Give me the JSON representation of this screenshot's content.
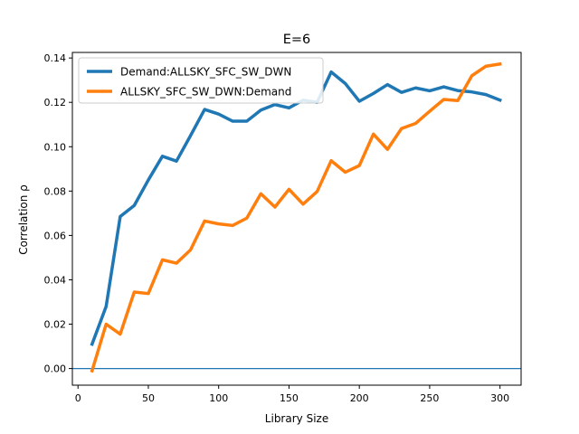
{
  "chart_data": {
    "type": "line",
    "title": "E=6",
    "xlabel": "Library Size",
    "ylabel": "Correlation ρ",
    "xlim": [
      -4,
      315
    ],
    "ylim": [
      -0.0075,
      0.1425
    ],
    "xticks": [
      0,
      50,
      100,
      150,
      200,
      250,
      300
    ],
    "yticks": [
      0.0,
      0.02,
      0.04,
      0.06,
      0.08,
      0.1,
      0.12,
      0.14
    ],
    "xtick_labels": [
      "0",
      "50",
      "100",
      "150",
      "200",
      "250",
      "300"
    ],
    "ytick_labels": [
      "0.00",
      "0.02",
      "0.04",
      "0.06",
      "0.08",
      "0.10",
      "0.12",
      "0.14"
    ],
    "grid": false,
    "legend_position": "upper-left",
    "x": [
      10,
      20,
      30,
      40,
      50,
      60,
      70,
      80,
      90,
      100,
      110,
      120,
      130,
      140,
      150,
      160,
      170,
      180,
      190,
      200,
      210,
      220,
      230,
      240,
      250,
      260,
      270,
      280,
      290,
      300
    ],
    "series": [
      {
        "name": "Demand:ALLSKY_SFC_SW_DWN",
        "color": "#1f77b4",
        "values": [
          0.011,
          0.028,
          0.0685,
          0.0735,
          0.085,
          0.0957,
          0.0935,
          0.105,
          0.1168,
          0.1147,
          0.1115,
          0.1115,
          0.1165,
          0.119,
          0.1175,
          0.121,
          0.12,
          0.1337,
          0.1285,
          0.1205,
          0.124,
          0.128,
          0.1245,
          0.1265,
          0.1252,
          0.127,
          0.1253,
          0.1247,
          0.1235,
          0.121
        ]
      },
      {
        "name": "ALLSKY_SFC_SW_DWN:Demand",
        "color": "#ff7f0e",
        "values": [
          -0.001,
          0.02,
          0.0155,
          0.0345,
          0.0338,
          0.049,
          0.0475,
          0.0535,
          0.0665,
          0.0652,
          0.0645,
          0.0678,
          0.0788,
          0.0728,
          0.0808,
          0.0741,
          0.0798,
          0.0937,
          0.0885,
          0.0915,
          0.1057,
          0.0988,
          0.1082,
          0.1105,
          0.116,
          0.1213,
          0.1208,
          0.132,
          0.1363,
          0.1373
        ]
      }
    ],
    "reference_line": {
      "y": 0.0,
      "color": "#1f77b4"
    }
  }
}
